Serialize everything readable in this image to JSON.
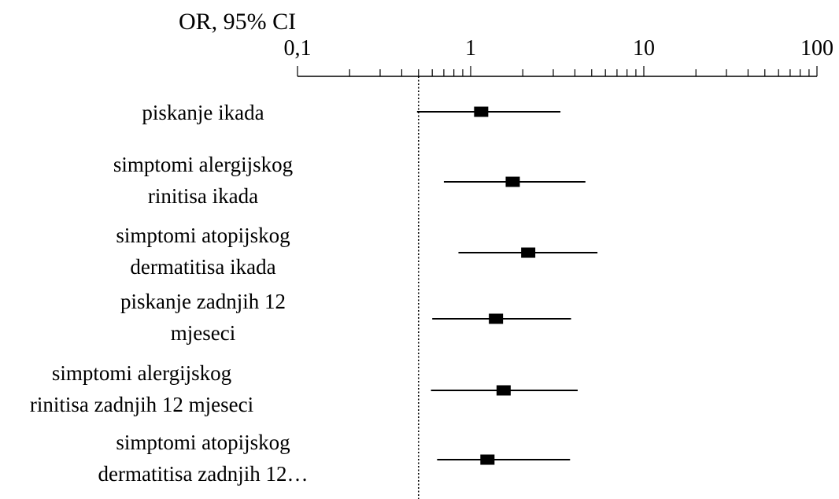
{
  "chart_data": {
    "type": "forest",
    "title": "OR, 95% CI",
    "x_scale": "log",
    "xlim": [
      0.1,
      100
    ],
    "x_ticks": [
      {
        "value": 0.1,
        "label": "0,1"
      },
      {
        "value": 1,
        "label": "1"
      },
      {
        "value": 10,
        "label": "10"
      },
      {
        "value": 100,
        "label": "100"
      }
    ],
    "reference_line": 0.5,
    "rows": [
      {
        "label": [
          "piskanje ikada"
        ],
        "or": 1.15,
        "ci_low": 0.49,
        "ci_high": 3.3
      },
      {
        "label": [
          "simptomi alergijskog",
          "rinitisa ikada"
        ],
        "or": 1.75,
        "ci_low": 0.7,
        "ci_high": 4.6
      },
      {
        "label": [
          "simptomi atopijskog",
          "dermatitisa ikada"
        ],
        "or": 2.15,
        "ci_low": 0.85,
        "ci_high": 5.4
      },
      {
        "label": [
          "piskanje zadnjih 12",
          "mjeseci"
        ],
        "or": 1.4,
        "ci_low": 0.6,
        "ci_high": 3.8
      },
      {
        "label": [
          "simptomi alergijskog",
          "rinitisa zadnjih 12 mjeseci"
        ],
        "or": 1.55,
        "ci_low": 0.59,
        "ci_high": 4.15
      },
      {
        "label": [
          "simptomi atopijskog",
          "dermatitisa zadnjih 12…"
        ],
        "or": 1.25,
        "ci_low": 0.64,
        "ci_high": 3.75
      }
    ],
    "colors": {
      "marks": "#000000"
    }
  }
}
